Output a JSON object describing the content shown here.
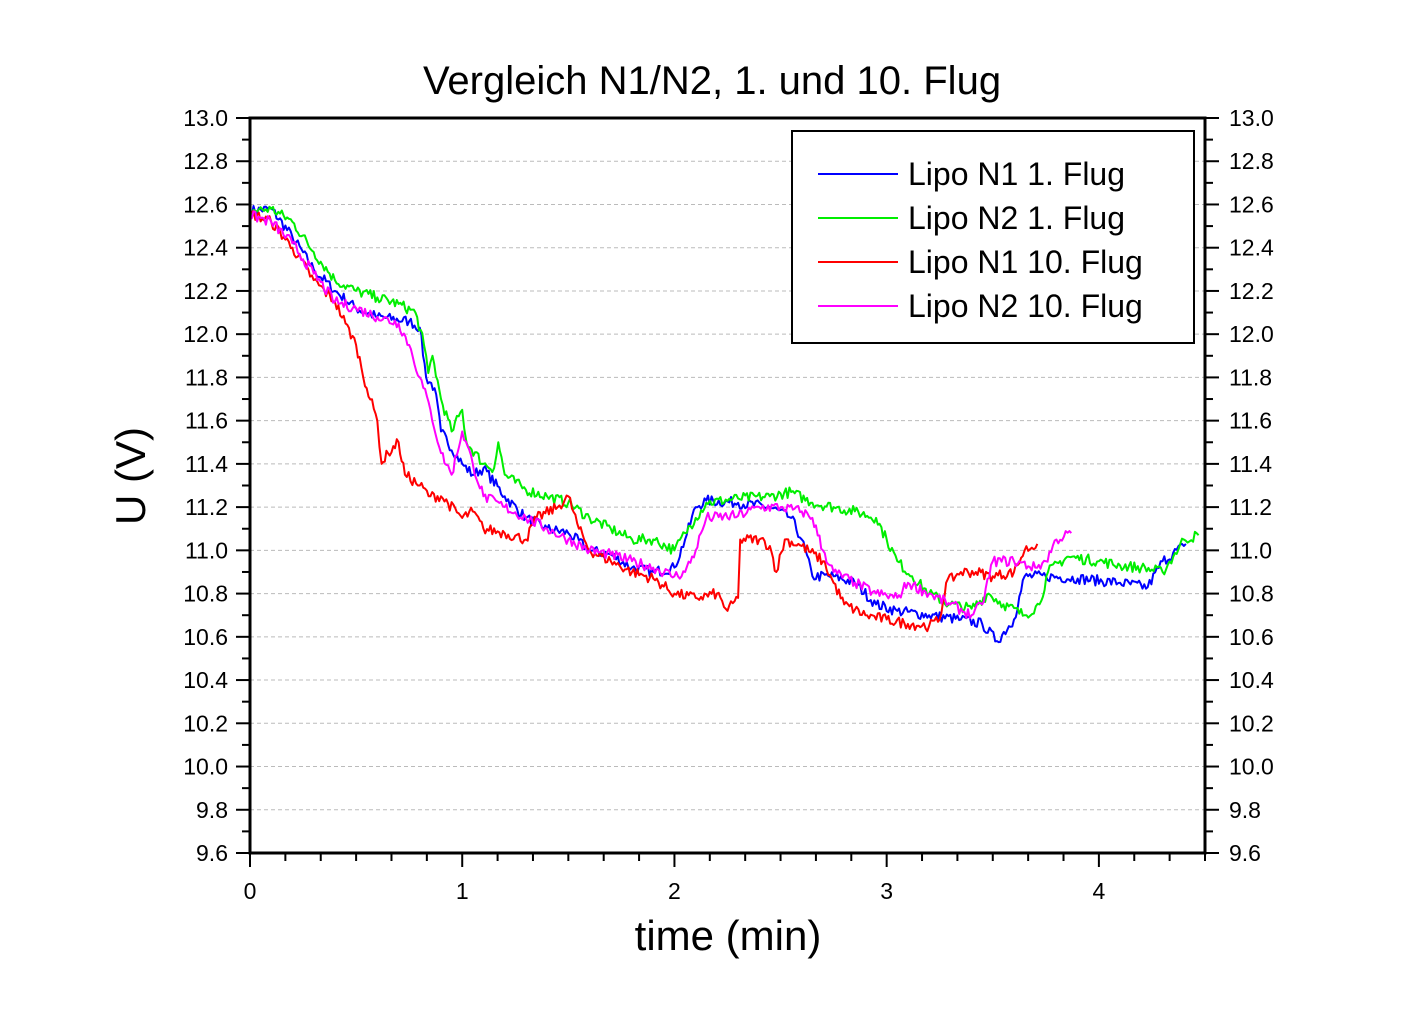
{
  "chart_data": {
    "type": "line",
    "title": "Vergleich N1/N2, 1. und 10. Flug",
    "xlabel": "time (min)",
    "ylabel": "U (V)",
    "xlim": [
      0,
      4.5
    ],
    "ylim": [
      9.6,
      13.0
    ],
    "xticks": [
      "0",
      "1",
      "2",
      "3",
      "4"
    ],
    "xtick_values": [
      0,
      1,
      2,
      3,
      4
    ],
    "yticks": [
      "9.6",
      "9.8",
      "10.0",
      "10.2",
      "10.4",
      "10.6",
      "10.8",
      "11.0",
      "11.2",
      "11.4",
      "11.6",
      "11.8",
      "12.0",
      "12.2",
      "12.4",
      "12.6",
      "12.8",
      "13.0"
    ],
    "ytick_values": [
      9.6,
      9.8,
      10.0,
      10.2,
      10.4,
      10.6,
      10.8,
      11.0,
      11.2,
      11.4,
      11.6,
      11.8,
      12.0,
      12.2,
      12.4,
      12.6,
      12.8,
      13.0
    ],
    "grid": "horizontal dashed",
    "legend_position": "top-right",
    "series": [
      {
        "name": "Lipo N1 1. Flug",
        "color": "#0000ff",
        "x": [
          0,
          0.1,
          0.2,
          0.3,
          0.4,
          0.5,
          0.6,
          0.75,
          0.8,
          0.83,
          0.87,
          0.9,
          1.0,
          1.05,
          1.1,
          1.2,
          1.3,
          1.4,
          1.5,
          1.6,
          1.7,
          1.8,
          1.9,
          2.0,
          2.05,
          2.1,
          2.15,
          2.3,
          2.45,
          2.55,
          2.6,
          2.65,
          2.75,
          2.85,
          2.95,
          3.05,
          3.2,
          3.35,
          3.45,
          3.52,
          3.6,
          3.65,
          3.75,
          3.9,
          4.1,
          4.23,
          4.3,
          4.4,
          4.41
        ],
        "y": [
          12.57,
          12.58,
          12.45,
          12.3,
          12.2,
          12.12,
          12.08,
          12.06,
          12.03,
          11.8,
          11.75,
          11.55,
          11.4,
          11.35,
          11.38,
          11.25,
          11.15,
          11.1,
          11.08,
          11.0,
          10.98,
          10.92,
          10.9,
          10.92,
          11.05,
          11.2,
          11.23,
          11.22,
          11.2,
          11.15,
          11.05,
          10.88,
          10.88,
          10.85,
          10.75,
          10.72,
          10.7,
          10.68,
          10.66,
          10.58,
          10.68,
          10.88,
          10.88,
          10.87,
          10.85,
          10.83,
          10.95,
          11.02,
          11.03
        ]
      },
      {
        "name": "Lipo N2 1. Flug",
        "color": "#00ee00",
        "x": [
          0,
          0.1,
          0.2,
          0.3,
          0.4,
          0.5,
          0.6,
          0.7,
          0.78,
          0.82,
          0.84,
          0.86,
          0.9,
          0.95,
          1.0,
          1.02,
          1.1,
          1.15,
          1.17,
          1.2,
          1.3,
          1.4,
          1.5,
          1.6,
          1.7,
          1.8,
          1.9,
          2.0,
          2.05,
          2.1,
          2.15,
          2.3,
          2.45,
          2.55,
          2.65,
          2.75,
          2.85,
          2.95,
          3.0,
          3.05,
          3.12,
          3.2,
          3.3,
          3.4,
          3.48,
          3.55,
          3.65,
          3.72,
          3.76,
          3.85,
          4.0,
          4.1,
          4.2,
          4.3,
          4.35,
          4.4,
          4.47
        ],
        "y": [
          12.57,
          12.58,
          12.52,
          12.38,
          12.25,
          12.2,
          12.17,
          12.14,
          12.1,
          11.95,
          11.82,
          11.9,
          11.7,
          11.55,
          11.65,
          11.5,
          11.4,
          11.38,
          11.5,
          11.35,
          11.28,
          11.25,
          11.22,
          11.15,
          11.1,
          11.05,
          11.05,
          11.0,
          11.08,
          11.15,
          11.22,
          11.24,
          11.25,
          11.27,
          11.22,
          11.2,
          11.18,
          11.15,
          11.05,
          10.95,
          10.88,
          10.8,
          10.75,
          10.73,
          10.8,
          10.75,
          10.7,
          10.75,
          10.9,
          10.97,
          10.95,
          10.93,
          10.92,
          10.9,
          10.97,
          11.05,
          11.07
        ]
      },
      {
        "name": "Lipo N1 10. Flug",
        "color": "#ff0000",
        "x": [
          0,
          0.1,
          0.2,
          0.3,
          0.4,
          0.45,
          0.5,
          0.55,
          0.6,
          0.62,
          0.65,
          0.7,
          0.73,
          0.8,
          0.85,
          0.9,
          1.0,
          1.05,
          1.1,
          1.2,
          1.3,
          1.35,
          1.45,
          1.5,
          1.55,
          1.6,
          1.7,
          1.8,
          1.9,
          2.0,
          2.1,
          2.2,
          2.25,
          2.3,
          2.31,
          2.4,
          2.45,
          2.48,
          2.52,
          2.6,
          2.7,
          2.75,
          2.8,
          2.9,
          3.0,
          3.1,
          3.2,
          3.25,
          3.28,
          3.35,
          3.42,
          3.5,
          3.6,
          3.65,
          3.71
        ],
        "y": [
          12.56,
          12.52,
          12.4,
          12.25,
          12.15,
          12.05,
          11.95,
          11.75,
          11.6,
          11.4,
          11.45,
          11.5,
          11.35,
          11.3,
          11.25,
          11.25,
          11.15,
          11.18,
          11.1,
          11.08,
          11.05,
          11.15,
          11.2,
          11.25,
          11.1,
          11.0,
          10.95,
          10.9,
          10.87,
          10.8,
          10.78,
          10.8,
          10.72,
          10.78,
          11.05,
          11.05,
          11.02,
          10.9,
          11.05,
          11.02,
          10.95,
          10.85,
          10.75,
          10.7,
          10.68,
          10.66,
          10.65,
          10.68,
          10.85,
          10.9,
          10.9,
          10.88,
          10.9,
          11.0,
          11.03
        ]
      },
      {
        "name": "Lipo N2 10. Flug",
        "color": "#ff00ff",
        "x": [
          0,
          0.1,
          0.2,
          0.3,
          0.4,
          0.5,
          0.6,
          0.7,
          0.75,
          0.8,
          0.85,
          0.9,
          0.95,
          1.0,
          1.05,
          1.1,
          1.2,
          1.3,
          1.4,
          1.5,
          1.6,
          1.7,
          1.8,
          1.9,
          2.0,
          2.05,
          2.1,
          2.15,
          2.3,
          2.4,
          2.5,
          2.6,
          2.65,
          2.7,
          2.75,
          2.85,
          2.95,
          3.05,
          3.1,
          3.2,
          3.3,
          3.4,
          3.45,
          3.5,
          3.6,
          3.7,
          3.75,
          3.8,
          3.87
        ],
        "y": [
          12.55,
          12.52,
          12.42,
          12.28,
          12.15,
          12.12,
          12.08,
          12.05,
          11.95,
          11.8,
          11.65,
          11.45,
          11.35,
          11.55,
          11.4,
          11.25,
          11.2,
          11.15,
          11.1,
          11.05,
          11.0,
          10.98,
          10.95,
          10.92,
          10.88,
          10.9,
          11.0,
          11.15,
          11.16,
          11.2,
          11.2,
          11.18,
          11.15,
          11.0,
          10.9,
          10.85,
          10.8,
          10.78,
          10.85,
          10.8,
          10.75,
          10.7,
          10.75,
          10.95,
          10.95,
          10.92,
          10.95,
          11.05,
          11.08
        ]
      }
    ]
  }
}
